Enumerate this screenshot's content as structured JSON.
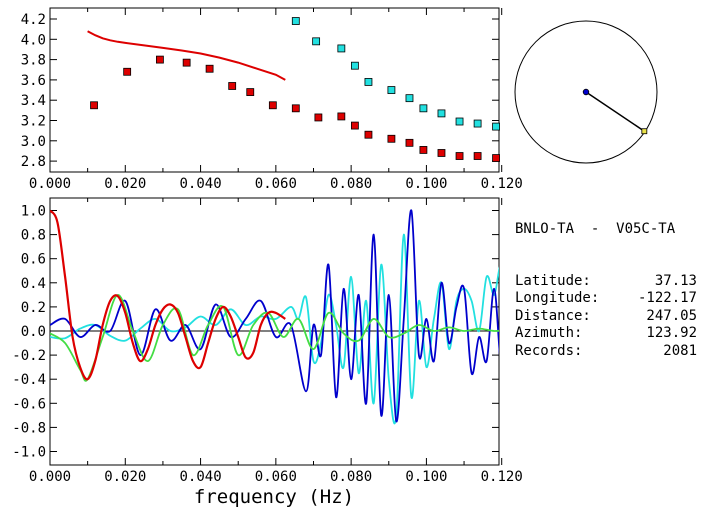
{
  "colors": {
    "red": "#dd0000",
    "cyan": "#22e0e0",
    "blue": "#0000cc",
    "green": "#44dd44",
    "black": "#000000"
  },
  "info": {
    "station": "BNLO-TA  -  V05C-TA",
    "rows": [
      {
        "label": "Latitude:",
        "value": "37.13"
      },
      {
        "label": "Longitude:",
        "value": "-122.17"
      },
      {
        "label": "Distance:",
        "value": "247.05"
      },
      {
        "label": "Azimuth:",
        "value": "123.92"
      },
      {
        "label": "Records:",
        "value": "2081"
      }
    ]
  },
  "chart_data": [
    {
      "type": "scatter",
      "xlim": [
        0.0,
        0.12
      ],
      "ylim": [
        2.75,
        4.25
      ],
      "x_ticks": [
        "0.000",
        "0.020",
        "0.040",
        "0.060",
        "0.080",
        "0.100",
        "0.120"
      ],
      "y_ticks": [
        "2.8",
        "3.0",
        "3.2",
        "3.4",
        "3.6",
        "3.8",
        "4.0",
        "4.2"
      ],
      "series": [
        {
          "color_key": "red",
          "kind": "line",
          "x": [
            0.01,
            0.012,
            0.014,
            0.016,
            0.018,
            0.02,
            0.025,
            0.03,
            0.035,
            0.04,
            0.045,
            0.05,
            0.055,
            0.06,
            0.0625
          ],
          "y": [
            4.08,
            4.04,
            4.01,
            3.99,
            3.975,
            3.965,
            3.94,
            3.915,
            3.89,
            3.86,
            3.82,
            3.77,
            3.71,
            3.65,
            3.6
          ]
        },
        {
          "color_key": "red",
          "kind": "squares",
          "x": [
            0.0117,
            0.0205,
            0.0292,
            0.0363,
            0.0424,
            0.0484,
            0.0532,
            0.0592,
            0.0653,
            0.0713,
            0.0774,
            0.081,
            0.0846,
            0.0907,
            0.0955,
            0.0992,
            0.104,
            0.1088,
            0.1136,
            0.1185
          ],
          "y": [
            3.35,
            3.68,
            3.8,
            3.77,
            3.71,
            3.54,
            3.48,
            3.35,
            3.32,
            3.23,
            3.24,
            3.15,
            3.06,
            3.02,
            2.98,
            2.91,
            2.88,
            2.85,
            2.85,
            2.83
          ]
        },
        {
          "color_key": "cyan",
          "kind": "squares",
          "x": [
            0.0653,
            0.0707,
            0.0774,
            0.081,
            0.0846,
            0.0907,
            0.0955,
            0.0992,
            0.104,
            0.1088,
            0.1136,
            0.1185
          ],
          "y": [
            4.18,
            3.98,
            3.91,
            3.74,
            3.58,
            3.5,
            3.42,
            3.32,
            3.27,
            3.19,
            3.17,
            3.14
          ]
        }
      ]
    },
    {
      "type": "line",
      "xlabel": "frequency (Hz)",
      "xlim": [
        0.0,
        0.125
      ],
      "ylim": [
        -1.1,
        1.1
      ],
      "x_ticks": [
        "0.000",
        "0.020",
        "0.040",
        "0.060",
        "0.080",
        "0.100",
        "0.120"
      ],
      "y_ticks": [
        "1.0",
        "0.8",
        "0.6",
        "0.4",
        "0.2",
        "0.0",
        "-0.2",
        "-0.4",
        "-0.6",
        "-0.8",
        "-1.0"
      ],
      "series": [
        {
          "color_key": "cyan",
          "x": [
            0.0,
            0.004,
            0.008,
            0.012,
            0.016,
            0.02,
            0.024,
            0.028,
            0.032,
            0.036,
            0.04,
            0.044,
            0.048,
            0.052,
            0.056,
            0.06,
            0.064,
            0.066,
            0.068,
            0.07,
            0.072,
            0.074,
            0.076,
            0.078,
            0.08,
            0.082,
            0.084,
            0.086,
            0.088,
            0.09,
            0.092,
            0.094,
            0.096,
            0.098,
            0.1,
            0.102,
            0.104,
            0.106,
            0.108,
            0.11,
            0.112,
            0.114,
            0.116,
            0.118,
            0.12,
            0.122,
            0.125
          ],
          "y": [
            -0.05,
            -0.06,
            0.02,
            0.05,
            -0.04,
            -0.08,
            0.02,
            0.1,
            0.0,
            0.03,
            0.12,
            0.05,
            0.18,
            0.05,
            0.12,
            0.1,
            0.2,
            0.1,
            0.28,
            -0.25,
            -0.1,
            0.3,
            0.05,
            -0.3,
            0.45,
            -0.35,
            0.25,
            -0.6,
            0.55,
            -0.4,
            -0.7,
            0.8,
            -0.55,
            0.25,
            -0.3,
            0.1,
            0.4,
            -0.15,
            0.25,
            0.35,
            0.25,
            0.0,
            0.45,
            0.3,
            0.55,
            0.0,
            -0.1
          ]
        },
        {
          "color_key": "blue",
          "x": [
            0.0,
            0.004,
            0.008,
            0.012,
            0.016,
            0.02,
            0.024,
            0.028,
            0.032,
            0.036,
            0.04,
            0.044,
            0.048,
            0.052,
            0.056,
            0.06,
            0.064,
            0.068,
            0.07,
            0.072,
            0.074,
            0.076,
            0.078,
            0.08,
            0.082,
            0.084,
            0.086,
            0.088,
            0.09,
            0.092,
            0.094,
            0.096,
            0.098,
            0.1,
            0.102,
            0.104,
            0.106,
            0.108,
            0.11,
            0.112,
            0.114,
            0.116,
            0.118,
            0.12,
            0.122,
            0.125
          ],
          "y": [
            0.05,
            0.1,
            -0.05,
            0.05,
            0.0,
            0.25,
            -0.2,
            0.18,
            -0.08,
            0.05,
            -0.15,
            0.22,
            -0.05,
            0.1,
            0.25,
            -0.05,
            0.05,
            -0.5,
            0.05,
            -0.2,
            0.55,
            -0.55,
            0.35,
            -0.4,
            0.3,
            -0.6,
            0.8,
            -0.7,
            0.3,
            -0.75,
            0.1,
            1.0,
            -0.2,
            0.1,
            -0.25,
            0.4,
            -0.1,
            0.2,
            0.35,
            -0.35,
            -0.05,
            -0.25,
            0.35,
            -0.3,
            0.3,
            -0.2
          ]
        },
        {
          "color_key": "green",
          "x": [
            0.0,
            0.004,
            0.008,
            0.01,
            0.014,
            0.018,
            0.022,
            0.026,
            0.03,
            0.034,
            0.038,
            0.042,
            0.046,
            0.05,
            0.054,
            0.058,
            0.062,
            0.066,
            0.07,
            0.074,
            0.078,
            0.082,
            0.086,
            0.09,
            0.094,
            0.098,
            0.102,
            0.106,
            0.11,
            0.114,
            0.118,
            0.122,
            0.125
          ],
          "y": [
            -0.02,
            -0.1,
            -0.32,
            -0.4,
            -0.05,
            0.3,
            0.0,
            -0.25,
            0.05,
            0.18,
            -0.2,
            0.05,
            0.2,
            -0.2,
            0.05,
            0.15,
            -0.05,
            0.1,
            -0.15,
            0.15,
            -0.02,
            -0.08,
            0.1,
            -0.05,
            -0.02,
            0.05,
            0.0,
            0.03,
            0.0,
            0.02,
            0.0,
            0.01,
            0.0
          ]
        },
        {
          "color_key": "red",
          "x": [
            0.0,
            0.002,
            0.004,
            0.006,
            0.008,
            0.01,
            0.012,
            0.014,
            0.016,
            0.018,
            0.02,
            0.022,
            0.024,
            0.026,
            0.028,
            0.03,
            0.032,
            0.034,
            0.036,
            0.038,
            0.04,
            0.042,
            0.044,
            0.046,
            0.048,
            0.05,
            0.052,
            0.054,
            0.056,
            0.058,
            0.06,
            0.0625
          ],
          "y": [
            1.0,
            0.9,
            0.45,
            -0.05,
            -0.3,
            -0.4,
            -0.25,
            0.05,
            0.25,
            0.29,
            0.15,
            -0.1,
            -0.25,
            -0.15,
            0.05,
            0.18,
            0.22,
            0.15,
            -0.05,
            -0.25,
            -0.3,
            -0.1,
            0.1,
            0.2,
            0.12,
            -0.05,
            -0.22,
            -0.18,
            0.05,
            0.15,
            0.15,
            0.1
          ]
        }
      ]
    },
    {
      "type": "polar",
      "azimuth_deg": 123.92,
      "radius_fraction": 0.99
    }
  ]
}
